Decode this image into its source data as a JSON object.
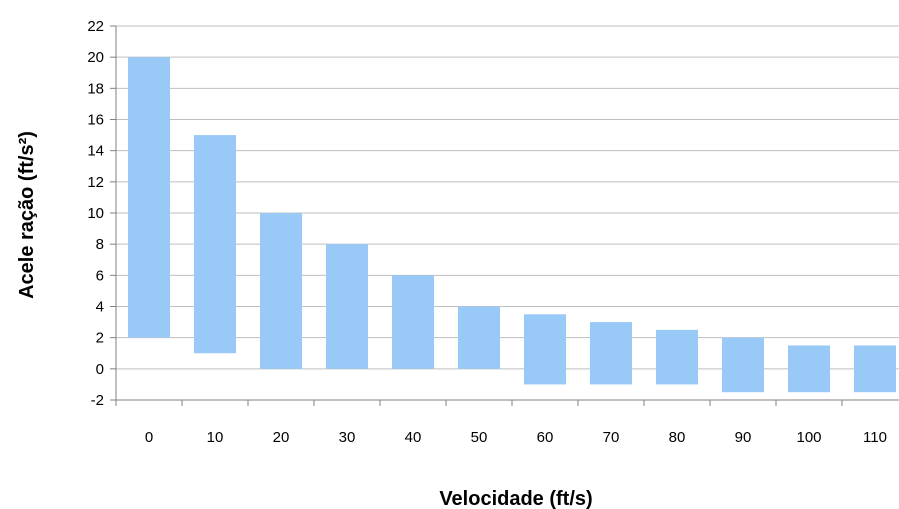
{
  "chart_data": {
    "type": "bar",
    "subtype": "floating-range",
    "title": "",
    "xlabel": "Velocidade (ft/s)",
    "ylabel": "Acele ração (ft/s²)",
    "categories": [
      "0",
      "10",
      "20",
      "30",
      "40",
      "50",
      "60",
      "70",
      "80",
      "90",
      "100",
      "110"
    ],
    "series": [
      {
        "low": [
          2,
          1,
          0,
          0,
          0,
          0,
          -1,
          -1,
          -1,
          -1.5,
          -1.5,
          -1.5
        ],
        "high": [
          20,
          15,
          10,
          8,
          6,
          4,
          3.5,
          3,
          2.5,
          2,
          1.5,
          1.5
        ]
      }
    ],
    "yticks": [
      "-2",
      "0",
      "2",
      "4",
      "6",
      "8",
      "10",
      "12",
      "14",
      "16",
      "18",
      "20",
      "22"
    ],
    "ylim": [
      -2,
      22
    ],
    "grid": true,
    "legend": "none",
    "colors": {
      "bar": "#99c9f7",
      "grid": "#bfbfbf",
      "axis": "#808080"
    }
  }
}
